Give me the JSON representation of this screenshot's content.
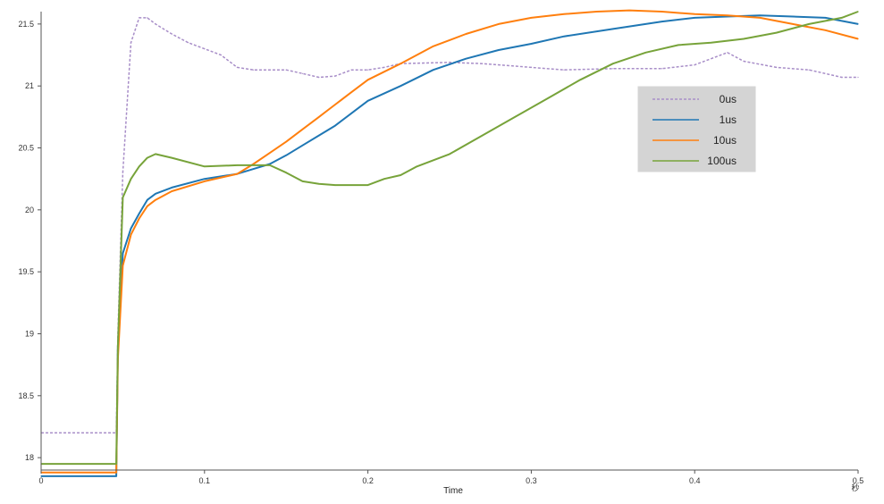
{
  "chart_data": {
    "type": "line",
    "title": "",
    "xlabel": "Time",
    "x_unit_label": "秒",
    "ylabel": "",
    "xlim": [
      0,
      0.5
    ],
    "ylim": [
      17.9,
      21.6
    ],
    "x_ticks": [
      0,
      0.1,
      0.2,
      0.3,
      0.4,
      0.5
    ],
    "x_tick_labels": [
      "0",
      "0.1",
      "0.2",
      "0.3",
      "0.4",
      "0.5"
    ],
    "y_ticks": [
      18,
      18.5,
      19,
      19.5,
      20,
      20.5,
      21,
      21.5
    ],
    "y_tick_labels": [
      "18",
      "18.5",
      "19",
      "19.5",
      "20",
      "20.5",
      "21",
      "21.5"
    ],
    "grid": false,
    "legend_position": "upper-right",
    "series": [
      {
        "name": "0us",
        "color": "#a88ec8",
        "style": "dashed-oscillating",
        "x": [
          0,
          0.046,
          0.047,
          0.05,
          0.055,
          0.06,
          0.065,
          0.07,
          0.08,
          0.09,
          0.1,
          0.11,
          0.12,
          0.13,
          0.15,
          0.16,
          0.17,
          0.18,
          0.19,
          0.2,
          0.21,
          0.22,
          0.25,
          0.27,
          0.3,
          0.32,
          0.35,
          0.38,
          0.4,
          0.42,
          0.43,
          0.45,
          0.47,
          0.49,
          0.5
        ],
        "y": [
          18.2,
          18.2,
          19.0,
          20.3,
          21.35,
          21.55,
          21.55,
          21.5,
          21.42,
          21.35,
          21.3,
          21.25,
          21.15,
          21.13,
          21.13,
          21.1,
          21.07,
          21.08,
          21.13,
          21.13,
          21.15,
          21.18,
          21.19,
          21.18,
          21.15,
          21.13,
          21.14,
          21.14,
          21.17,
          21.27,
          21.2,
          21.15,
          21.13,
          21.07,
          21.07
        ]
      },
      {
        "name": "1us",
        "color": "#1f77b4",
        "style": "solid",
        "x": [
          0,
          0.046,
          0.047,
          0.05,
          0.055,
          0.06,
          0.065,
          0.07,
          0.08,
          0.1,
          0.12,
          0.13,
          0.14,
          0.15,
          0.16,
          0.17,
          0.18,
          0.19,
          0.2,
          0.22,
          0.24,
          0.26,
          0.28,
          0.3,
          0.32,
          0.35,
          0.38,
          0.4,
          0.42,
          0.44,
          0.46,
          0.48,
          0.5
        ],
        "y": [
          17.85,
          17.85,
          18.9,
          19.65,
          19.85,
          19.97,
          20.08,
          20.13,
          20.18,
          20.25,
          20.29,
          20.33,
          20.37,
          20.44,
          20.52,
          20.6,
          20.68,
          20.78,
          20.88,
          21.0,
          21.13,
          21.22,
          21.29,
          21.34,
          21.4,
          21.46,
          21.52,
          21.55,
          21.56,
          21.57,
          21.56,
          21.55,
          21.5
        ]
      },
      {
        "name": "10us",
        "color": "#ff7f0e",
        "style": "solid",
        "x": [
          0,
          0.046,
          0.047,
          0.05,
          0.055,
          0.06,
          0.065,
          0.07,
          0.08,
          0.1,
          0.12,
          0.13,
          0.14,
          0.15,
          0.16,
          0.17,
          0.18,
          0.19,
          0.2,
          0.22,
          0.24,
          0.26,
          0.28,
          0.3,
          0.32,
          0.34,
          0.36,
          0.38,
          0.4,
          0.42,
          0.44,
          0.46,
          0.48,
          0.5
        ],
        "y": [
          17.88,
          17.88,
          18.8,
          19.55,
          19.8,
          19.93,
          20.03,
          20.08,
          20.15,
          20.23,
          20.29,
          20.37,
          20.46,
          20.55,
          20.65,
          20.75,
          20.85,
          20.95,
          21.05,
          21.18,
          21.32,
          21.42,
          21.5,
          21.55,
          21.58,
          21.6,
          21.61,
          21.6,
          21.58,
          21.57,
          21.55,
          21.5,
          21.45,
          21.38
        ]
      },
      {
        "name": "100us",
        "color": "#77a33a",
        "style": "solid",
        "x": [
          0,
          0.046,
          0.047,
          0.05,
          0.055,
          0.06,
          0.065,
          0.07,
          0.08,
          0.1,
          0.12,
          0.14,
          0.15,
          0.16,
          0.17,
          0.18,
          0.19,
          0.2,
          0.21,
          0.22,
          0.23,
          0.25,
          0.27,
          0.29,
          0.31,
          0.33,
          0.35,
          0.37,
          0.39,
          0.41,
          0.43,
          0.45,
          0.47,
          0.49,
          0.5
        ],
        "y": [
          17.95,
          17.95,
          18.9,
          20.1,
          20.25,
          20.35,
          20.42,
          20.45,
          20.42,
          20.35,
          20.36,
          20.36,
          20.3,
          20.23,
          20.21,
          20.2,
          20.2,
          20.2,
          20.25,
          20.28,
          20.35,
          20.45,
          20.6,
          20.75,
          20.9,
          21.05,
          21.18,
          21.27,
          21.33,
          21.35,
          21.38,
          21.43,
          21.5,
          21.55,
          21.6
        ]
      }
    ]
  }
}
